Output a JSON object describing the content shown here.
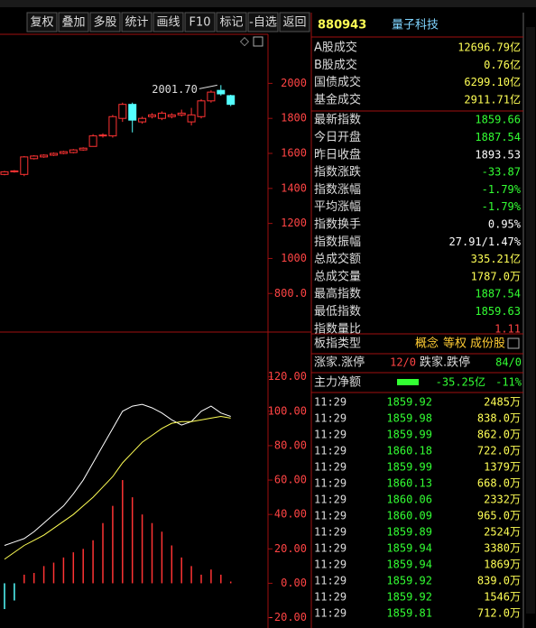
{
  "toolbar": [
    "复权",
    "叠加",
    "多股",
    "统计",
    "画线",
    "F10",
    "标记",
    "-自选",
    "返回"
  ],
  "quote": {
    "code": "880943",
    "name": "量子科技",
    "stats": [
      {
        "label": "A股成交",
        "value": "12696.79亿",
        "color": "#ffff55"
      },
      {
        "label": "B股成交",
        "value": "0.76亿",
        "color": "#ffff55"
      },
      {
        "label": "国债成交",
        "value": "6299.10亿",
        "color": "#ffff55"
      },
      {
        "label": "基金成交",
        "value": "2911.71亿",
        "color": "#ffff55"
      },
      {
        "label": "最新指数",
        "value": "1859.66",
        "color": "#33ff33"
      },
      {
        "label": "今日开盘",
        "value": "1887.54",
        "color": "#33ff33"
      },
      {
        "label": "昨日收盘",
        "value": "1893.53",
        "color": "#ffffff"
      },
      {
        "label": "指数涨跌",
        "value": "-33.87",
        "color": "#33ff33"
      },
      {
        "label": "指数涨幅",
        "value": "-1.79%",
        "color": "#33ff33"
      },
      {
        "label": "平均涨幅",
        "value": "-1.79%",
        "color": "#33ff33"
      },
      {
        "label": "指数换手",
        "value": "0.95%",
        "color": "#ffffff"
      },
      {
        "label": "指数振幅",
        "value": "27.91/1.47%",
        "color": "#ffffff"
      },
      {
        "label": "总成交额",
        "value": "335.21亿",
        "color": "#ffff55"
      },
      {
        "label": "总成交量",
        "value": "1787.0万",
        "color": "#ffff55"
      },
      {
        "label": "最高指数",
        "value": "1887.54",
        "color": "#33ff33"
      },
      {
        "label": "最低指数",
        "value": "1859.63",
        "color": "#33ff33"
      },
      {
        "label": "指数量比",
        "value": "1.11",
        "color": "#ff4444"
      }
    ],
    "type_label": "板指类型",
    "types": [
      "概念",
      "等权",
      "成份股"
    ],
    "up_label": "涨家.涨停",
    "up_value": "12/0",
    "down_label": "跌家.跌停",
    "down_value": "84/0",
    "flow_label": "主力净额",
    "flow_value": "-35.25亿",
    "flow_pct": "-11%"
  },
  "ticks": [
    [
      "11:29",
      "1859.92",
      "2485万"
    ],
    [
      "11:29",
      "1859.98",
      "838.0万"
    ],
    [
      "11:29",
      "1859.99",
      "862.0万"
    ],
    [
      "11:29",
      "1860.18",
      "722.0万"
    ],
    [
      "11:29",
      "1859.99",
      "1379万"
    ],
    [
      "11:29",
      "1860.13",
      "668.0万"
    ],
    [
      "11:29",
      "1860.06",
      "2332万"
    ],
    [
      "11:29",
      "1860.09",
      "965.0万"
    ],
    [
      "11:29",
      "1859.89",
      "2524万"
    ],
    [
      "11:29",
      "1859.94",
      "3380万"
    ],
    [
      "11:29",
      "1859.94",
      "1869万"
    ],
    [
      "11:29",
      "1859.92",
      "839.0万"
    ],
    [
      "11:29",
      "1859.92",
      "1546万"
    ],
    [
      "11:29",
      "1859.81",
      "712.0万"
    ]
  ],
  "chart_data": [
    {
      "type": "candlestick",
      "ylim": [
        590,
        2270
      ],
      "yticks": [
        2000,
        1800,
        1600,
        1400,
        1200,
        1000,
        {
          "value": 800,
          "label": "800.0"
        }
      ],
      "annotation": "2001.70",
      "up_color": "#ff3333",
      "down_color": "#54ffff",
      "open": [
        1480,
        1495,
        1480,
        1570,
        1580,
        1590,
        1600,
        1605,
        1620,
        1640,
        1700,
        1700,
        1800,
        1880,
        1780,
        1810,
        1800,
        1810,
        1820,
        1780,
        1810,
        1900,
        1960,
        1930
      ],
      "high": [
        1500,
        1505,
        1585,
        1590,
        1595,
        1605,
        1615,
        1625,
        1635,
        1710,
        1715,
        1820,
        1890,
        1890,
        1810,
        1830,
        1840,
        1830,
        1850,
        1860,
        1910,
        1960,
        1990,
        1935
      ],
      "low": [
        1475,
        1490,
        1470,
        1565,
        1575,
        1585,
        1595,
        1600,
        1615,
        1640,
        1690,
        1690,
        1780,
        1720,
        1770,
        1800,
        1790,
        1800,
        1810,
        1760,
        1800,
        1890,
        1930,
        1870
      ],
      "close": [
        1495,
        1500,
        1580,
        1585,
        1590,
        1600,
        1610,
        1620,
        1630,
        1700,
        1705,
        1810,
        1880,
        1790,
        1800,
        1820,
        1830,
        1820,
        1830,
        1820,
        1900,
        1950,
        1940,
        1880
      ]
    },
    {
      "type": "macd",
      "ylim": [
        -26,
        145
      ],
      "yticks": [
        {
          "value": 120,
          "label": "120.00"
        },
        {
          "value": 100,
          "label": "100.00"
        },
        {
          "value": 80,
          "label": "80.00"
        },
        {
          "value": 60,
          "label": "60.00"
        },
        {
          "value": 40,
          "label": "40.00"
        },
        {
          "value": 20,
          "label": "20.00"
        },
        {
          "value": 0,
          "label": "0.00"
        },
        {
          "value": -20,
          "label": "-20.00"
        }
      ],
      "series": [
        {
          "name": "DIF",
          "color": "#ffffff",
          "values": [
            22,
            24,
            26,
            30,
            35,
            40,
            45,
            52,
            60,
            70,
            80,
            90,
            100,
            103,
            104,
            102,
            99,
            95,
            92,
            94,
            100,
            103,
            99,
            97
          ]
        },
        {
          "name": "DEA",
          "color": "#ffff55",
          "values": [
            14,
            18,
            22,
            25,
            28,
            32,
            36,
            40,
            45,
            50,
            56,
            62,
            70,
            76,
            82,
            86,
            90,
            93,
            94,
            94,
            95,
            96,
            97,
            96
          ]
        }
      ],
      "histogram": [
        -15,
        -10,
        5,
        6,
        10,
        12,
        15,
        18,
        20,
        25,
        35,
        45,
        60,
        50,
        40,
        35,
        30,
        22,
        15,
        10,
        5,
        8,
        5,
        1
      ],
      "up_color": "#ff3333",
      "down_color": "#54ffff"
    }
  ]
}
